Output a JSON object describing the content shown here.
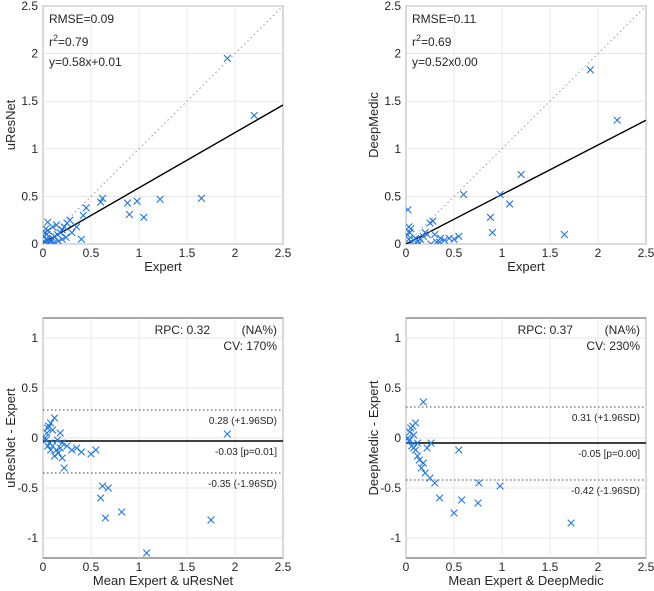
{
  "chart_data": [
    {
      "type": "scatter",
      "xlabel": "Expert",
      "ylabel": "uResNet",
      "xlim": [
        0,
        2.5
      ],
      "ylim": [
        0,
        2.5
      ],
      "xticks": [
        "0",
        "0.5",
        "1",
        "1.5",
        "2",
        "2.5"
      ],
      "yticks": [
        "0",
        "0.5",
        "1",
        "1.5",
        "2",
        "2.5"
      ],
      "grid": true,
      "stats": {
        "rmse": "RMSE=0.09",
        "r2_prefix": "r",
        "r2_sup": "2",
        "r2_rest": "=0.79",
        "fit": "y=0.58x+0.01"
      },
      "fit_line": {
        "slope": 0.58,
        "intercept": 0.01
      },
      "identity_line": true,
      "marker_color": "#1f77e6",
      "points": [
        [
          0.02,
          0.02
        ],
        [
          0.03,
          0.05
        ],
        [
          0.01,
          0.08
        ],
        [
          0.04,
          0.1
        ],
        [
          0.02,
          0.12
        ],
        [
          0.05,
          0.14
        ],
        [
          0.03,
          0.16
        ],
        [
          0.06,
          0.0
        ],
        [
          0.08,
          0.04
        ],
        [
          0.1,
          0.06
        ],
        [
          0.12,
          0.08
        ],
        [
          0.15,
          0.1
        ],
        [
          0.18,
          0.12
        ],
        [
          0.2,
          0.15
        ],
        [
          0.22,
          0.18
        ],
        [
          0.05,
          0.23
        ],
        [
          0.1,
          0.18
        ],
        [
          0.14,
          0.2
        ],
        [
          0.25,
          0.22
        ],
        [
          0.28,
          0.25
        ],
        [
          0.3,
          0.12
        ],
        [
          0.35,
          0.18
        ],
        [
          0.4,
          0.05
        ],
        [
          0.42,
          0.3
        ],
        [
          0.45,
          0.38
        ],
        [
          0.08,
          0.02
        ],
        [
          0.12,
          0.01
        ],
        [
          0.16,
          0.03
        ],
        [
          0.2,
          0.05
        ],
        [
          0.24,
          0.07
        ],
        [
          0.6,
          0.44
        ],
        [
          0.62,
          0.48
        ],
        [
          0.88,
          0.43
        ],
        [
          0.98,
          0.45
        ],
        [
          0.9,
          0.31
        ],
        [
          1.05,
          0.28
        ],
        [
          1.22,
          0.47
        ],
        [
          1.65,
          0.48
        ],
        [
          1.92,
          1.95
        ],
        [
          2.2,
          1.35
        ]
      ]
    },
    {
      "type": "scatter",
      "xlabel": "Expert",
      "ylabel": "DeepMedic",
      "xlim": [
        0,
        2.5
      ],
      "ylim": [
        0,
        2.5
      ],
      "xticks": [
        "0",
        "0.5",
        "1",
        "1.5",
        "2",
        "2.5"
      ],
      "yticks": [
        "0",
        "0.5",
        "1",
        "1.5",
        "2",
        "2.5"
      ],
      "grid": true,
      "stats": {
        "rmse": "RMSE=0.11",
        "r2_prefix": "r",
        "r2_sup": "2",
        "r2_rest": "=0.69",
        "fit": "y=0.52x0.00"
      },
      "fit_line": {
        "slope": 0.52,
        "intercept": 0.0
      },
      "identity_line": true,
      "marker_color": "#1f77e6",
      "points": [
        [
          0.02,
          0.36
        ],
        [
          0.03,
          0.05
        ],
        [
          0.01,
          0.1
        ],
        [
          0.04,
          0.12
        ],
        [
          0.05,
          0.16
        ],
        [
          0.06,
          0.02
        ],
        [
          0.08,
          0.04
        ],
        [
          0.1,
          0.06
        ],
        [
          0.12,
          0.03
        ],
        [
          0.15,
          0.05
        ],
        [
          0.18,
          0.08
        ],
        [
          0.2,
          0.12
        ],
        [
          0.22,
          0.1
        ],
        [
          0.25,
          0.22
        ],
        [
          0.28,
          0.24
        ],
        [
          0.3,
          0.1
        ],
        [
          0.35,
          0.02
        ],
        [
          0.4,
          0.04
        ],
        [
          0.45,
          0.06
        ],
        [
          0.5,
          0.05
        ],
        [
          0.55,
          0.08
        ],
        [
          0.6,
          0.52
        ],
        [
          0.88,
          0.28
        ],
        [
          0.9,
          0.12
        ],
        [
          0.98,
          0.52
        ],
        [
          1.08,
          0.42
        ],
        [
          1.2,
          0.73
        ],
        [
          1.65,
          0.1
        ],
        [
          1.92,
          1.83
        ],
        [
          2.2,
          1.3
        ],
        [
          0.14,
          0.01
        ],
        [
          0.26,
          0.0
        ],
        [
          0.32,
          0.02
        ],
        [
          0.36,
          0.06
        ],
        [
          0.03,
          0.18
        ]
      ]
    },
    {
      "type": "scatter",
      "xlabel": "Mean Expert & uResNet",
      "ylabel": "uResNet - Expert",
      "xlim": [
        0,
        2.5
      ],
      "ylim": [
        -1.2,
        1.2
      ],
      "xticks": [
        "0",
        "0.5",
        "1",
        "1.5",
        "2",
        "2.5"
      ],
      "yticks": [
        "-1",
        "-0.5",
        "0",
        "0.5",
        "1"
      ],
      "grid": true,
      "stats": {
        "rpc": "RPC: 0.32",
        "na": "(NA%)",
        "cv": "CV: 170%"
      },
      "mean_line": {
        "value": -0.03,
        "label": "-0.03 [p=0.01]"
      },
      "upper_loa": {
        "value": 0.28,
        "label": "0.28 (+1.96SD)"
      },
      "lower_loa": {
        "value": -0.35,
        "label": "-0.35 (-1.96SD)"
      },
      "marker_color": "#1f77e6",
      "points": [
        [
          0.02,
          0.0
        ],
        [
          0.03,
          -0.02
        ],
        [
          0.04,
          0.05
        ],
        [
          0.05,
          0.1
        ],
        [
          0.06,
          0.12
        ],
        [
          0.07,
          -0.05
        ],
        [
          0.08,
          0.15
        ],
        [
          0.1,
          0.08
        ],
        [
          0.1,
          -0.08
        ],
        [
          0.12,
          0.2
        ],
        [
          0.14,
          -0.12
        ],
        [
          0.15,
          -0.02
        ],
        [
          0.16,
          -0.15
        ],
        [
          0.18,
          -0.1
        ],
        [
          0.2,
          -0.05
        ],
        [
          0.22,
          -0.3
        ],
        [
          0.25,
          -0.08
        ],
        [
          0.3,
          -0.12
        ],
        [
          0.35,
          -0.1
        ],
        [
          0.4,
          -0.14
        ],
        [
          0.5,
          -0.16
        ],
        [
          0.55,
          -0.12
        ],
        [
          0.6,
          -0.6
        ],
        [
          0.62,
          -0.48
        ],
        [
          0.65,
          -0.8
        ],
        [
          0.68,
          -0.5
        ],
        [
          0.82,
          -0.74
        ],
        [
          1.08,
          -1.15
        ],
        [
          1.75,
          -0.82
        ],
        [
          1.92,
          0.04
        ],
        [
          0.12,
          -0.18
        ],
        [
          0.08,
          -0.12
        ],
        [
          0.18,
          0.05
        ],
        [
          0.2,
          -0.2
        ],
        [
          0.05,
          -0.08
        ]
      ]
    },
    {
      "type": "scatter",
      "xlabel": "Mean Expert & DeepMedic",
      "ylabel": "DeepMedic - Expert",
      "xlim": [
        0,
        2.5
      ],
      "ylim": [
        -1.2,
        1.2
      ],
      "xticks": [
        "0",
        "0.5",
        "1",
        "1.5",
        "2",
        "2.5"
      ],
      "yticks": [
        "-1",
        "-0.5",
        "0",
        "0.5",
        "1"
      ],
      "grid": true,
      "stats": {
        "rpc": "RPC: 0.37",
        "na": "(NA%)",
        "cv": "CV: 230%"
      },
      "mean_line": {
        "value": -0.05,
        "label": "-0.05 [p=0.00]"
      },
      "upper_loa": {
        "value": 0.31,
        "label": "0.31 (+1.96SD)"
      },
      "lower_loa": {
        "value": -0.42,
        "label": "-0.42 (-1.96SD)"
      },
      "marker_color": "#1f77e6",
      "points": [
        [
          0.02,
          0.0
        ],
        [
          0.03,
          -0.03
        ],
        [
          0.04,
          0.06
        ],
        [
          0.05,
          0.1
        ],
        [
          0.06,
          -0.08
        ],
        [
          0.07,
          0.12
        ],
        [
          0.08,
          -0.1
        ],
        [
          0.1,
          0.15
        ],
        [
          0.1,
          -0.12
        ],
        [
          0.12,
          -0.18
        ],
        [
          0.14,
          -0.22
        ],
        [
          0.16,
          -0.3
        ],
        [
          0.18,
          0.36
        ],
        [
          0.2,
          -0.35
        ],
        [
          0.22,
          -0.1
        ],
        [
          0.25,
          -0.4
        ],
        [
          0.3,
          -0.45
        ],
        [
          0.35,
          -0.6
        ],
        [
          0.5,
          -0.75
        ],
        [
          0.55,
          -0.12
        ],
        [
          0.58,
          -0.62
        ],
        [
          0.75,
          -0.65
        ],
        [
          0.76,
          -0.45
        ],
        [
          0.98,
          -0.48
        ],
        [
          1.72,
          -0.85
        ],
        [
          0.08,
          0.03
        ],
        [
          0.12,
          -0.05
        ],
        [
          0.18,
          -0.25
        ],
        [
          0.26,
          -0.05
        ],
        [
          0.04,
          -0.02
        ]
      ]
    }
  ]
}
